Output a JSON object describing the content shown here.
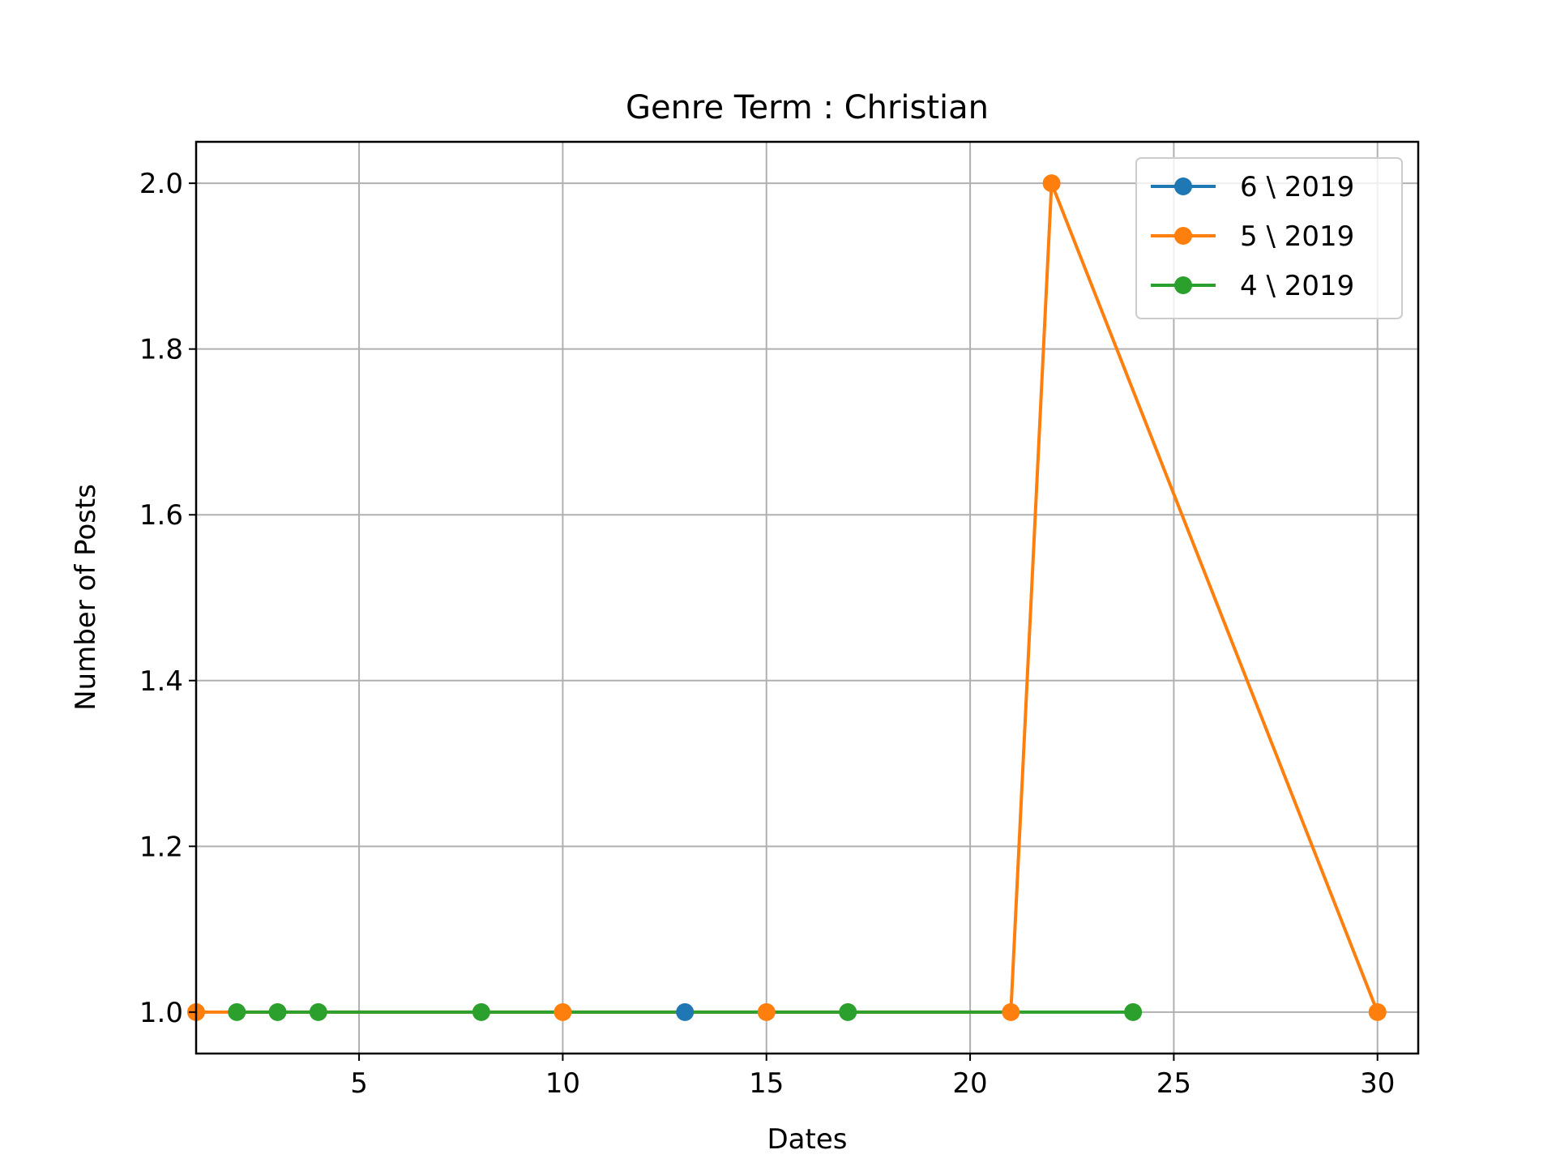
{
  "chart_data": {
    "type": "line",
    "title": "Genre Term : Christian",
    "xlabel": "Dates",
    "ylabel": "Number of Posts",
    "xlim": [
      1,
      31
    ],
    "ylim": [
      0.95,
      2.05
    ],
    "xticks": [
      5,
      10,
      15,
      20,
      25,
      30
    ],
    "yticks": [
      1.0,
      1.2,
      1.4,
      1.6,
      1.8,
      2.0
    ],
    "ytick_labels": [
      "1.0",
      "1.2",
      "1.4",
      "1.6",
      "1.8",
      "2.0"
    ],
    "grid": true,
    "legend_position": "top-right",
    "series": [
      {
        "name": "6 \\ 2019",
        "color": "#1f77b4",
        "x": [
          13
        ],
        "y": [
          1
        ]
      },
      {
        "name": "5 \\ 2019",
        "color": "#ff7f0e",
        "x": [
          1,
          10,
          15,
          21,
          22,
          30
        ],
        "y": [
          1,
          1,
          1,
          1,
          2,
          1
        ]
      },
      {
        "name": "4 \\ 2019",
        "color": "#2ca02c",
        "x": [
          2,
          3,
          4,
          8,
          17,
          24
        ],
        "y": [
          1,
          1,
          1,
          1,
          1,
          1
        ]
      }
    ]
  }
}
